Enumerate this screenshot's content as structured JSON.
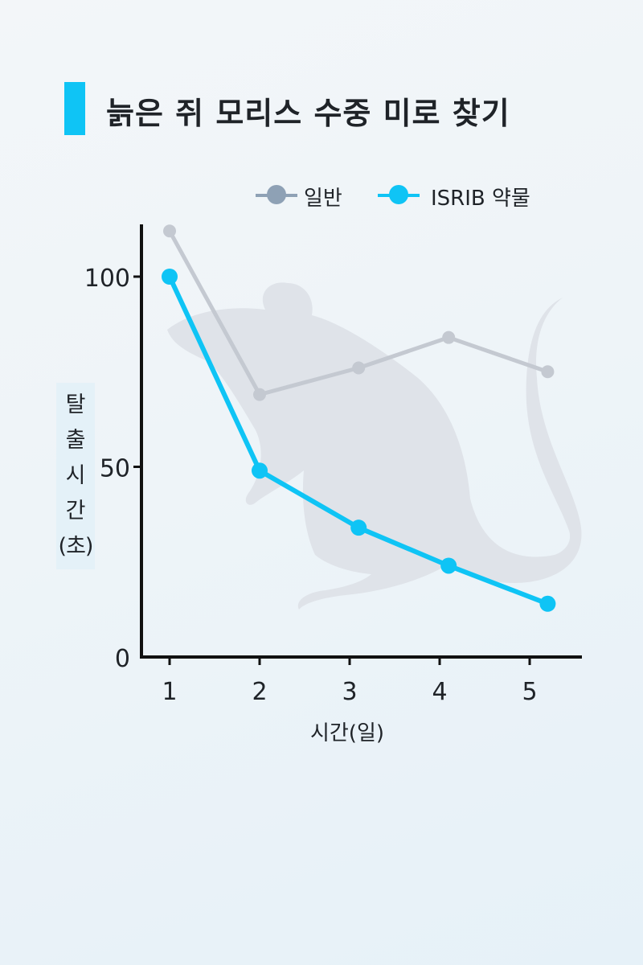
{
  "title": "늙은 쥐 모리스 수중 미로 찾기",
  "chart_data": {
    "type": "line",
    "title": "늙은 쥐 모리스 수중 미로 찾기",
    "xlabel": "시간(일)",
    "ylabel": [
      "탈",
      "출",
      "시",
      "간",
      "(초)"
    ],
    "categories": [
      "1",
      "2",
      "3",
      "4",
      "5"
    ],
    "y_ticks": [
      "0",
      "50",
      "100"
    ],
    "ylim": [
      0,
      112
    ],
    "grid": false,
    "legend_position": "top",
    "series": [
      {
        "name": "일반",
        "color": "#c4c9d1",
        "marker_color": "#c4c9d1",
        "legend_color": "#8ea1b5",
        "x": [
          1.0,
          2.0,
          3.1,
          4.1,
          5.2
        ],
        "values": [
          112,
          69,
          76,
          84,
          75
        ]
      },
      {
        "name": "ISRIB 약물",
        "color": "#0fc4f5",
        "marker_color": "#0fc4f5",
        "legend_color": "#0fc4f5",
        "x": [
          1.0,
          2.0,
          3.1,
          4.1,
          5.2
        ],
        "values": [
          100,
          49,
          34,
          24,
          14
        ]
      }
    ]
  },
  "decoration": {
    "icon": "mouse-silhouette-icon",
    "color": "#dfe3e9"
  }
}
